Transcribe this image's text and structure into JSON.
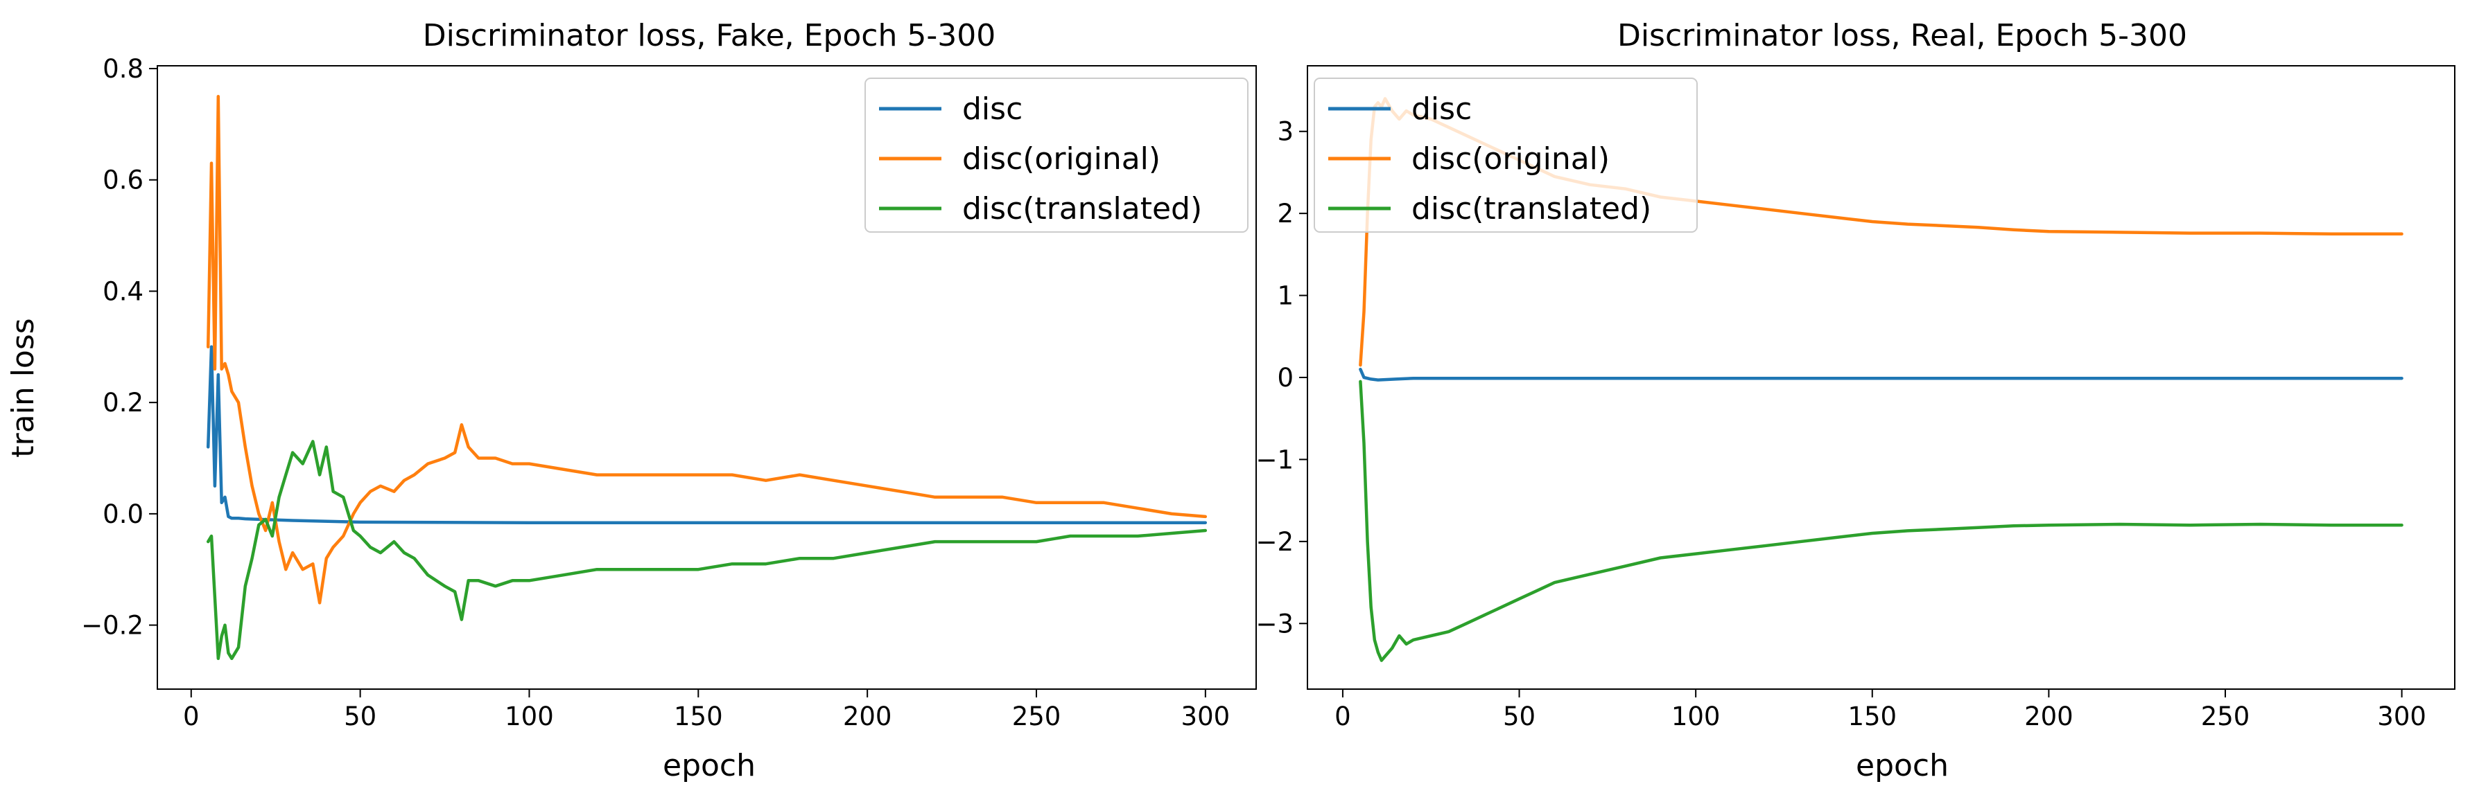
{
  "chart_data": [
    {
      "type": "line",
      "title": "Discriminator loss, Fake, Epoch 5-300",
      "xlabel": "epoch",
      "ylabel": "train loss",
      "xlim": [
        -10,
        315
      ],
      "ylim": [
        -0.315,
        0.805
      ],
      "xticks": [
        0,
        50,
        100,
        150,
        200,
        250,
        300
      ],
      "xtick_labels": [
        "0",
        "50",
        "100",
        "150",
        "200",
        "250",
        "300"
      ],
      "yticks": [
        -0.2,
        0.0,
        0.2,
        0.4,
        0.6,
        0.8
      ],
      "ytick_labels": [
        "−0.2",
        "0.0",
        "0.2",
        "0.4",
        "0.6",
        "0.8"
      ],
      "legend_position": "upper right",
      "series": [
        {
          "name": "disc",
          "color": "#1f77b4",
          "x": [
            5,
            6,
            7,
            8,
            9,
            10,
            11,
            12,
            14,
            16,
            20,
            30,
            50,
            100,
            150,
            200,
            250,
            300
          ],
          "y": [
            0.12,
            0.3,
            0.05,
            0.25,
            0.02,
            0.03,
            -0.005,
            -0.008,
            -0.008,
            -0.009,
            -0.01,
            -0.012,
            -0.015,
            -0.016,
            -0.016,
            -0.016,
            -0.016,
            -0.016
          ]
        },
        {
          "name": "disc(original)",
          "color": "#ff7f0e",
          "x": [
            5,
            6,
            7,
            8,
            9,
            10,
            11,
            12,
            14,
            16,
            18,
            20,
            22,
            24,
            26,
            28,
            30,
            33,
            36,
            38,
            40,
            42,
            45,
            48,
            50,
            53,
            56,
            60,
            63,
            66,
            70,
            75,
            78,
            80,
            82,
            85,
            90,
            95,
            100,
            110,
            120,
            130,
            140,
            150,
            160,
            170,
            180,
            190,
            200,
            210,
            220,
            230,
            240,
            250,
            260,
            270,
            280,
            290,
            300
          ],
          "y": [
            0.3,
            0.63,
            0.26,
            0.75,
            0.26,
            0.27,
            0.25,
            0.22,
            0.2,
            0.12,
            0.05,
            0.0,
            -0.03,
            0.02,
            -0.05,
            -0.1,
            -0.07,
            -0.1,
            -0.09,
            -0.16,
            -0.08,
            -0.06,
            -0.04,
            0.0,
            0.02,
            0.04,
            0.05,
            0.04,
            0.06,
            0.07,
            0.09,
            0.1,
            0.11,
            0.16,
            0.12,
            0.1,
            0.1,
            0.09,
            0.09,
            0.08,
            0.07,
            0.07,
            0.07,
            0.07,
            0.07,
            0.06,
            0.07,
            0.06,
            0.05,
            0.04,
            0.03,
            0.03,
            0.03,
            0.02,
            0.02,
            0.02,
            0.01,
            0.0,
            -0.005
          ]
        },
        {
          "name": "disc(translated)",
          "color": "#2ca02c",
          "x": [
            5,
            6,
            7,
            8,
            9,
            10,
            11,
            12,
            14,
            16,
            18,
            20,
            22,
            24,
            26,
            28,
            30,
            33,
            36,
            38,
            40,
            42,
            45,
            48,
            50,
            53,
            56,
            60,
            63,
            66,
            70,
            75,
            78,
            80,
            82,
            85,
            90,
            95,
            100,
            110,
            120,
            130,
            140,
            150,
            160,
            170,
            180,
            190,
            200,
            210,
            220,
            230,
            240,
            250,
            260,
            270,
            280,
            290,
            300
          ],
          "y": [
            -0.05,
            -0.04,
            -0.15,
            -0.26,
            -0.22,
            -0.2,
            -0.25,
            -0.26,
            -0.24,
            -0.13,
            -0.08,
            -0.02,
            -0.01,
            -0.04,
            0.03,
            0.07,
            0.11,
            0.09,
            0.13,
            0.07,
            0.12,
            0.04,
            0.03,
            -0.03,
            -0.04,
            -0.06,
            -0.07,
            -0.05,
            -0.07,
            -0.08,
            -0.11,
            -0.13,
            -0.14,
            -0.19,
            -0.12,
            -0.12,
            -0.13,
            -0.12,
            -0.12,
            -0.11,
            -0.1,
            -0.1,
            -0.1,
            -0.1,
            -0.09,
            -0.09,
            -0.08,
            -0.08,
            -0.07,
            -0.06,
            -0.05,
            -0.05,
            -0.05,
            -0.05,
            -0.04,
            -0.04,
            -0.04,
            -0.035,
            -0.03
          ]
        }
      ]
    },
    {
      "type": "line",
      "title": "Discriminator loss, Real, Epoch 5-300",
      "xlabel": "epoch",
      "ylabel": "",
      "xlim": [
        -10,
        315
      ],
      "ylim": [
        -3.8,
        3.8
      ],
      "xticks": [
        0,
        50,
        100,
        150,
        200,
        250,
        300
      ],
      "xtick_labels": [
        "0",
        "50",
        "100",
        "150",
        "200",
        "250",
        "300"
      ],
      "yticks": [
        -3,
        -2,
        -1,
        0,
        1,
        2,
        3
      ],
      "ytick_labels": [
        "−3",
        "−2",
        "−1",
        "0",
        "1",
        "2",
        "3"
      ],
      "legend_position": "upper left",
      "series": [
        {
          "name": "disc",
          "color": "#1f77b4",
          "x": [
            5,
            6,
            8,
            10,
            15,
            20,
            50,
            100,
            150,
            200,
            250,
            300
          ],
          "y": [
            0.1,
            0.0,
            -0.02,
            -0.03,
            -0.02,
            -0.01,
            -0.01,
            -0.01,
            -0.01,
            -0.01,
            -0.01,
            -0.01
          ],
          "note": ""
        },
        {
          "name": "disc(original)",
          "color": "#ff7f0e",
          "x": [
            5,
            6,
            7,
            8,
            9,
            10,
            11,
            12,
            14,
            16,
            18,
            20,
            25,
            30,
            35,
            40,
            45,
            50,
            55,
            60,
            70,
            80,
            90,
            100,
            110,
            120,
            130,
            140,
            150,
            160,
            170,
            180,
            190,
            200,
            220,
            240,
            260,
            280,
            300
          ],
          "y": [
            0.15,
            0.8,
            2.0,
            2.9,
            3.3,
            3.35,
            3.3,
            3.4,
            3.25,
            3.15,
            3.25,
            3.2,
            3.15,
            3.05,
            2.95,
            2.85,
            2.75,
            2.65,
            2.55,
            2.45,
            2.35,
            2.3,
            2.2,
            2.15,
            2.1,
            2.05,
            2.0,
            1.95,
            1.9,
            1.87,
            1.85,
            1.83,
            1.8,
            1.78,
            1.77,
            1.76,
            1.76,
            1.75,
            1.75
          ]
        },
        {
          "name": "disc(translated)",
          "color": "#2ca02c",
          "x": [
            5,
            6,
            7,
            8,
            9,
            10,
            11,
            12,
            14,
            16,
            18,
            20,
            25,
            30,
            35,
            40,
            45,
            50,
            55,
            60,
            70,
            80,
            90,
            100,
            110,
            120,
            130,
            140,
            150,
            160,
            170,
            180,
            190,
            200,
            220,
            240,
            260,
            280,
            300
          ],
          "y": [
            -0.05,
            -0.8,
            -2.0,
            -2.8,
            -3.2,
            -3.35,
            -3.45,
            -3.4,
            -3.3,
            -3.15,
            -3.25,
            -3.2,
            -3.15,
            -3.1,
            -3.0,
            -2.9,
            -2.8,
            -2.7,
            -2.6,
            -2.5,
            -2.4,
            -2.3,
            -2.2,
            -2.15,
            -2.1,
            -2.05,
            -2.0,
            -1.95,
            -1.9,
            -1.87,
            -1.85,
            -1.83,
            -1.81,
            -1.8,
            -1.79,
            -1.8,
            -1.79,
            -1.8,
            -1.8
          ]
        }
      ]
    }
  ]
}
